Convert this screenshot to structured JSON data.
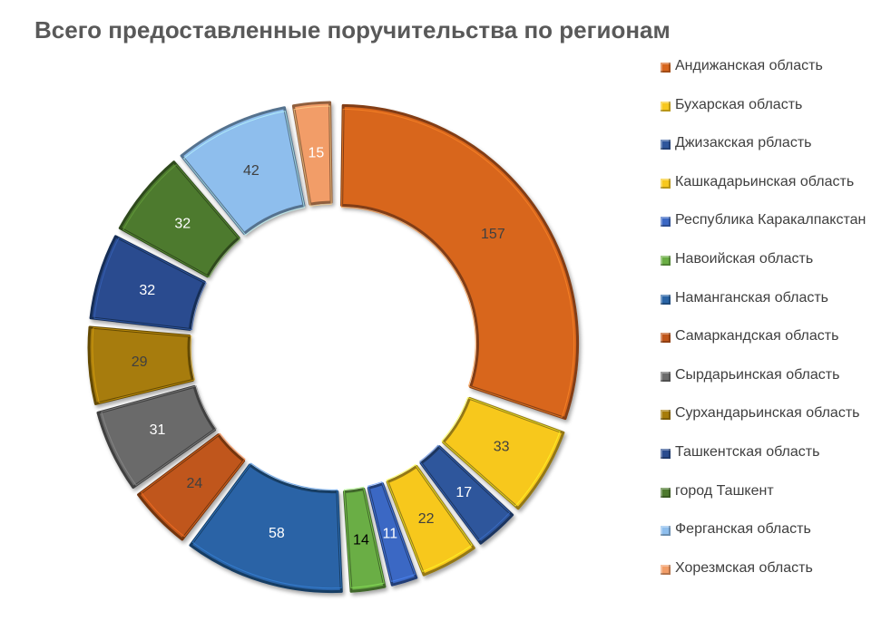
{
  "chart_data": {
    "type": "pie",
    "title": "Всего предоставленные поручительства по регионам",
    "categories": [
      "Андижанская область",
      "Бухарская область",
      "Джизакская рбласть",
      "Кашкадарьинская область",
      "Республика Каракалпакстан",
      "Навоийская область",
      "Наманганская область",
      "Самаркандская область",
      "Сырдарьинская область",
      "Сурхандарьинская область",
      "Ташкентская область",
      "город Ташкент",
      "Ферганская область",
      "Хорезмская область"
    ],
    "values": [
      157,
      33,
      17,
      22,
      11,
      14,
      58,
      24,
      31,
      29,
      32,
      32,
      42,
      15
    ],
    "colors": [
      "#D8661E",
      "#F7C81E",
      "#2F569C",
      "#F7C81E",
      "#3B68C4",
      "#6AAE44",
      "#2A64A6",
      "#C0561A",
      "#6B6B6B",
      "#A77C0A",
      "#2A4C8F",
      "#4E7A2E",
      "#8EBEED",
      "#F29D67"
    ],
    "label_colors": [
      "#404040",
      "#404040",
      "#ffffff",
      "#404040",
      "#ffffff",
      "#000000",
      "#ffffff",
      "#404040",
      "#ffffff",
      "#404040",
      "#ffffff",
      "#ffffff",
      "#404040",
      "#ffffff"
    ],
    "donut": true,
    "exploded": true,
    "legend_position": "right"
  }
}
